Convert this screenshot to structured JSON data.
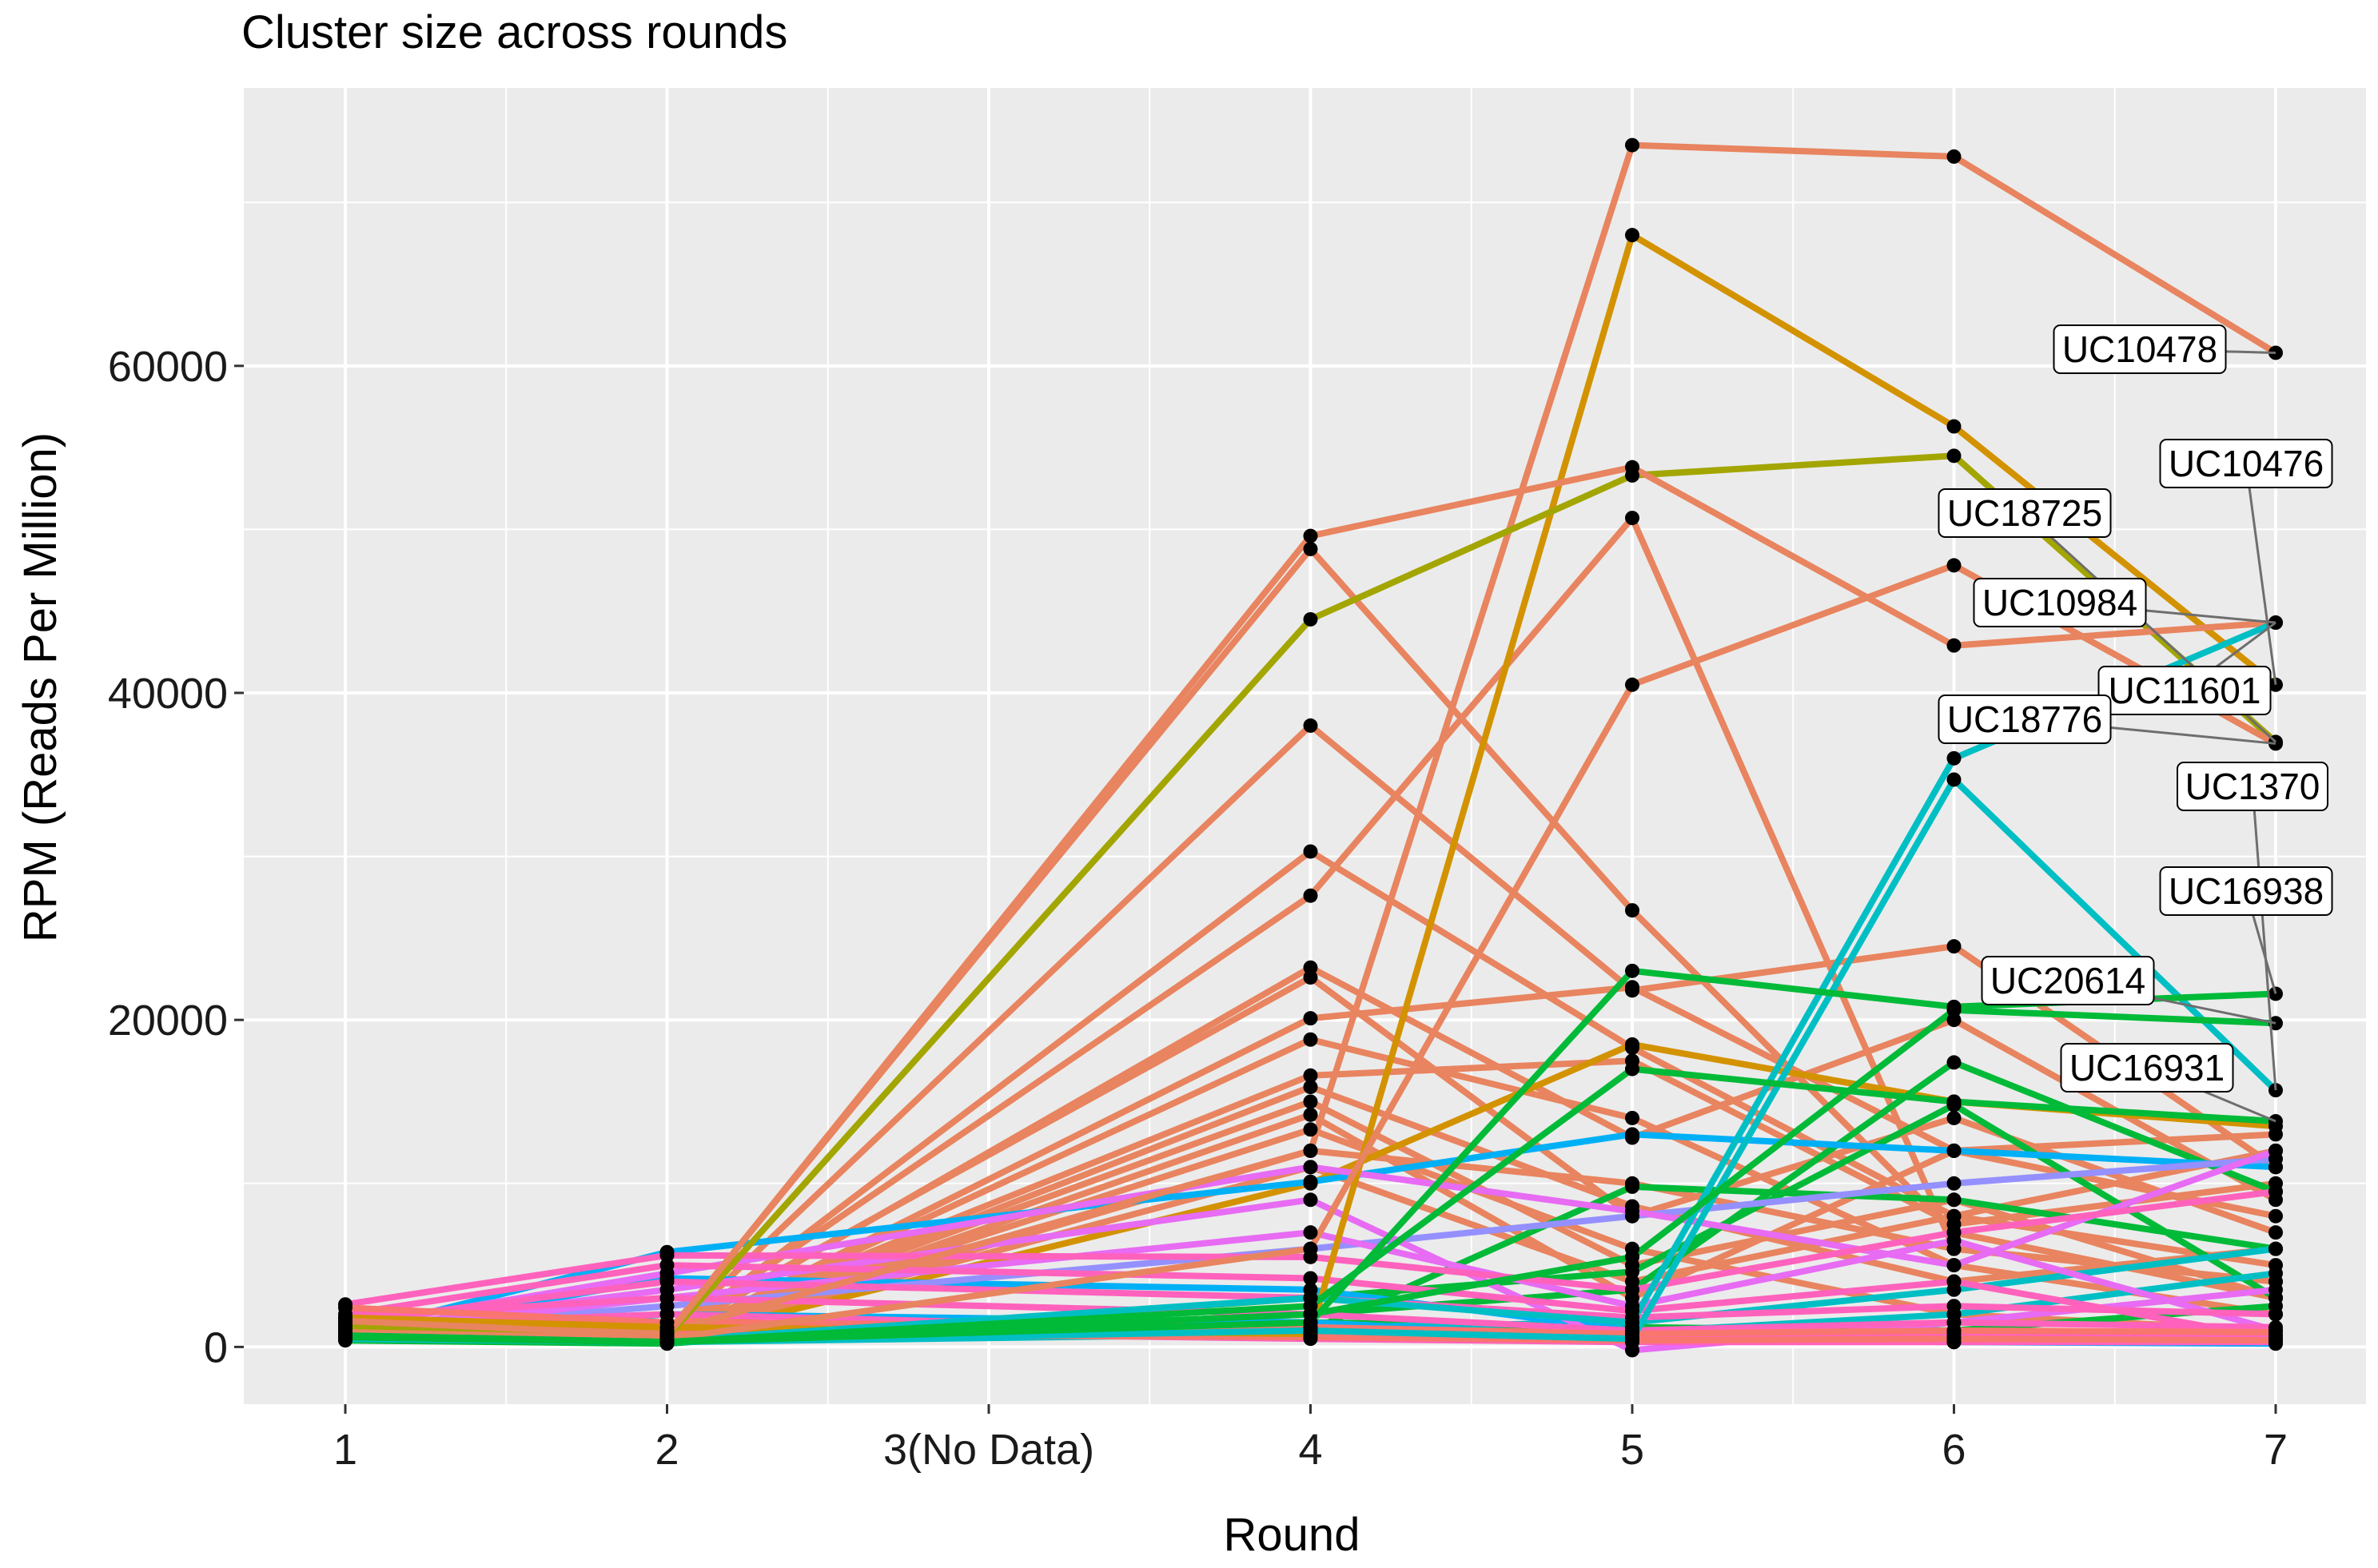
{
  "chart_data": {
    "type": "line",
    "title": "Cluster size across rounds",
    "xlabel": "Round",
    "ylabel": "RPM (Reads Per Million)",
    "x": [
      1,
      2,
      3,
      4,
      5,
      6,
      7
    ],
    "x_tick_labels": [
      "1",
      "2",
      "3(No Data)",
      "4",
      "5",
      "6",
      "7"
    ],
    "ylim": [
      -3500,
      77000
    ],
    "y_ticks": [
      0,
      20000,
      40000,
      60000
    ],
    "y_tick_labels": [
      "0",
      "20000",
      "40000",
      "60000"
    ],
    "grid": true,
    "legend": "none",
    "annotated_series": [
      {
        "name": "UC10478",
        "color": "#E8845F",
        "values": [
          1500,
          900,
          null,
          12000,
          73500,
          72800,
          60800
        ]
      },
      {
        "name": "UC10476",
        "color": "#D39200",
        "values": [
          1800,
          1200,
          null,
          800,
          68000,
          56300,
          40500
        ]
      },
      {
        "name": "UC18725",
        "color": "#A3A500",
        "values": [
          1200,
          600,
          null,
          44500,
          53300,
          54500,
          37000
        ]
      },
      {
        "name": "UC10984",
        "color": "#E8845F",
        "values": [
          1600,
          700,
          null,
          49600,
          53800,
          42900,
          44300
        ]
      },
      {
        "name": "UC11601",
        "color": "#00BFC4",
        "values": [
          800,
          400,
          null,
          3000,
          1500,
          36000,
          44300
        ]
      },
      {
        "name": "UC18776",
        "color": "#E8845F",
        "values": [
          900,
          500,
          null,
          6000,
          40500,
          47800,
          36900
        ]
      },
      {
        "name": "UC1370",
        "color": "#00BFC4",
        "values": [
          700,
          300,
          null,
          1000,
          500,
          34700,
          15700
        ]
      },
      {
        "name": "UC16938",
        "color": "#00BA38",
        "values": [
          600,
          300,
          null,
          1500,
          23000,
          20800,
          21600
        ]
      },
      {
        "name": "UC20614",
        "color": "#00BA38",
        "values": [
          700,
          300,
          null,
          2000,
          5500,
          20600,
          19800
        ]
      },
      {
        "name": "UC16931",
        "color": "#00BA38",
        "values": [
          600,
          300,
          null,
          2500,
          17000,
          15000,
          13800
        ]
      }
    ],
    "background_series": [
      {
        "color": "#E8845F",
        "values": [
          1500,
          800,
          null,
          48800,
          26700,
          7000,
          3000
        ]
      },
      {
        "color": "#E8845F",
        "values": [
          1200,
          600,
          null,
          38000,
          21800,
          24500,
          11000
        ]
      },
      {
        "color": "#E8845F",
        "values": [
          1000,
          500,
          null,
          30300,
          18300,
          8000,
          5000
        ]
      },
      {
        "color": "#E8845F",
        "values": [
          900,
          700,
          null,
          27600,
          50700,
          6000,
          4000
        ]
      },
      {
        "color": "#E8845F",
        "values": [
          1100,
          600,
          null,
          23200,
          12800,
          20000,
          9000
        ]
      },
      {
        "color": "#E8845F",
        "values": [
          1300,
          900,
          null,
          22600,
          8000,
          14000,
          7000
        ]
      },
      {
        "color": "#E8845F",
        "values": [
          1000,
          400,
          null,
          20100,
          22000,
          12000,
          13000
        ]
      },
      {
        "color": "#E8845F",
        "values": [
          800,
          500,
          null,
          18800,
          14000,
          5000,
          2000
        ]
      },
      {
        "color": "#E8845F",
        "values": [
          1200,
          800,
          null,
          16600,
          17500,
          7500,
          10000
        ]
      },
      {
        "color": "#E8845F",
        "values": [
          900,
          600,
          null,
          15900,
          8600,
          4000,
          6000
        ]
      },
      {
        "color": "#E8845F",
        "values": [
          1100,
          700,
          null,
          15000,
          5000,
          9000,
          3000
        ]
      },
      {
        "color": "#E8845F",
        "values": [
          1000,
          500,
          null,
          14200,
          3000,
          12000,
          8000
        ]
      },
      {
        "color": "#E8845F",
        "values": [
          900,
          600,
          null,
          13300,
          6000,
          2000,
          1000
        ]
      },
      {
        "color": "#E8845F",
        "values": [
          1000,
          400,
          null,
          12000,
          10000,
          6000,
          4000
        ]
      },
      {
        "color": "#E8845F",
        "values": [
          800,
          500,
          null,
          11000,
          4000,
          8000,
          12000
        ]
      },
      {
        "color": "#D39200",
        "values": [
          900,
          400,
          null,
          10000,
          18500,
          15000,
          13500
        ]
      },
      {
        "color": "#00BA38",
        "values": [
          500,
          300,
          null,
          1000,
          9800,
          9000,
          6000
        ]
      },
      {
        "color": "#00BA38",
        "values": [
          600,
          300,
          null,
          2000,
          3500,
          17400,
          9500
        ]
      },
      {
        "color": "#00BA38",
        "values": [
          400,
          200,
          null,
          3000,
          4600,
          14800,
          3000
        ]
      },
      {
        "color": "#00BA38",
        "values": [
          500,
          300,
          null,
          1500,
          1200,
          1000,
          2500
        ]
      },
      {
        "color": "#00BFC4",
        "values": [
          600,
          300,
          null,
          1200,
          1500,
          3500,
          6000
        ]
      },
      {
        "color": "#00BFC4",
        "values": [
          500,
          300,
          null,
          800,
          900,
          2000,
          4500
        ]
      },
      {
        "color": "#00B0F6",
        "values": [
          800,
          5800,
          null,
          10100,
          13000,
          12000,
          11000
        ]
      },
      {
        "color": "#00B0F6",
        "values": [
          700,
          4200,
          null,
          3500,
          1000,
          600,
          500
        ]
      },
      {
        "color": "#00B0F6",
        "values": [
          600,
          2000,
          null,
          1500,
          500,
          300,
          200
        ]
      },
      {
        "color": "#9590FF",
        "values": [
          900,
          2500,
          null,
          6000,
          8000,
          10000,
          11500
        ]
      },
      {
        "color": "#E76BF3",
        "values": [
          1200,
          4500,
          null,
          11000,
          8300,
          5000,
          12000
        ]
      },
      {
        "color": "#E76BF3",
        "values": [
          1000,
          3500,
          null,
          9000,
          -200,
          1500,
          3500
        ]
      },
      {
        "color": "#E76BF3",
        "values": [
          900,
          3000,
          null,
          7000,
          2500,
          6500,
          1000
        ]
      },
      {
        "color": "#FF62BC",
        "values": [
          2600,
          5600,
          null,
          5500,
          3500,
          7000,
          9500
        ]
      },
      {
        "color": "#FF62BC",
        "values": [
          2000,
          5000,
          null,
          4200,
          2200,
          4000,
          500
        ]
      },
      {
        "color": "#FF62BC",
        "values": [
          1500,
          4000,
          null,
          3000,
          1800,
          2500,
          2000
        ]
      },
      {
        "color": "#FF62BC",
        "values": [
          1800,
          3000,
          null,
          2000,
          1000,
          1500,
          1200
        ]
      },
      {
        "color": "#FF62BC",
        "values": [
          1300,
          2000,
          null,
          1000,
          600,
          800,
          700
        ]
      },
      {
        "color": "#FF62BC",
        "values": [
          1000,
          1000,
          null,
          500,
          300,
          300,
          300
        ]
      },
      {
        "color": "#F8766D",
        "values": [
          2400,
          1500,
          null,
          1200,
          800,
          1000,
          900
        ]
      },
      {
        "color": "#F8766D",
        "values": [
          1600,
          800,
          null,
          600,
          400,
          500,
          400
        ]
      }
    ]
  }
}
